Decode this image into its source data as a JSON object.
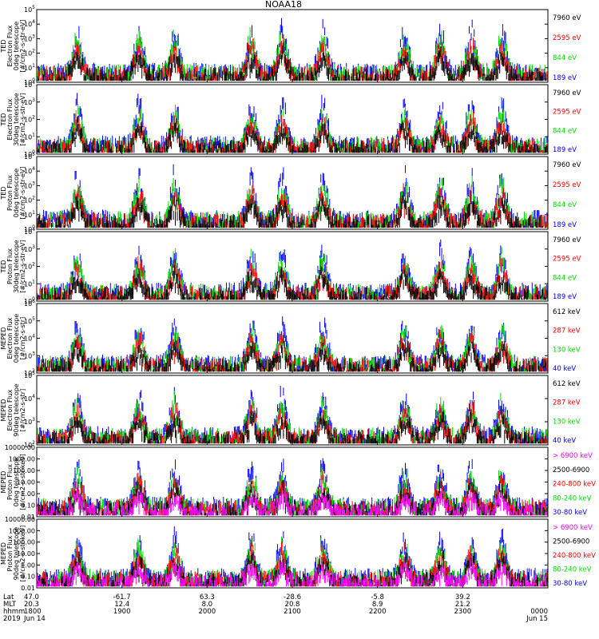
{
  "title": "NOAA18",
  "colors": {
    "black": "#000000",
    "red": "#ff0000",
    "green": "#00dd00",
    "blue": "#0000ff",
    "magenta": "#ff00ff"
  },
  "chart_data": [
    {
      "type": "line",
      "scale": "log",
      "ylabel": [
        "TED",
        "Electron Flux",
        "0deg telescope",
        "[#/cm2-s-str-eV]"
      ],
      "yticks": [
        "10^0",
        "10^1",
        "10^2",
        "10^3",
        "10^4",
        "10^5"
      ],
      "ylim": [
        1,
        100000
      ],
      "series": [
        {
          "name": "7960 eV",
          "color": "#000000"
        },
        {
          "name": "2595 eV",
          "color": "#ff0000"
        },
        {
          "name": "844 eV",
          "color": "#00dd00"
        },
        {
          "name": "189 eV",
          "color": "#0000ff"
        }
      ]
    },
    {
      "type": "line",
      "scale": "log",
      "ylabel": [
        "TED",
        "Electron Flux",
        "30deg telescope",
        "[#/cm2-s-str-eV]"
      ],
      "yticks": [
        "10^0",
        "10^1",
        "10^2",
        "10^3",
        "10^4"
      ],
      "ylim": [
        1,
        10000
      ],
      "series": [
        {
          "name": "7960 eV",
          "color": "#000000"
        },
        {
          "name": "2595 eV",
          "color": "#ff0000"
        },
        {
          "name": "844 eV",
          "color": "#00dd00"
        },
        {
          "name": "189 eV",
          "color": "#0000ff"
        }
      ]
    },
    {
      "type": "line",
      "scale": "log",
      "ylabel": [
        "TED",
        "Proton Flux",
        "0deg telescope",
        "[#/cm2-s-str-eV]"
      ],
      "yticks": [
        "10^0",
        "10^1",
        "10^2",
        "10^3",
        "10^4",
        "10^5"
      ],
      "ylim": [
        1,
        100000
      ],
      "series": [
        {
          "name": "7960 eV",
          "color": "#000000"
        },
        {
          "name": "2595 eV",
          "color": "#ff0000"
        },
        {
          "name": "844 eV",
          "color": "#00dd00"
        },
        {
          "name": "189 eV",
          "color": "#0000ff"
        }
      ]
    },
    {
      "type": "line",
      "scale": "log",
      "ylabel": [
        "TED",
        "Proton Flux",
        "30deg telescope",
        "[#/cm2-s-str-eV]"
      ],
      "yticks": [
        "10^0",
        "10^1",
        "10^2",
        "10^3",
        "10^4"
      ],
      "ylim": [
        1,
        10000
      ],
      "series": [
        {
          "name": "7960 eV",
          "color": "#000000"
        },
        {
          "name": "2595 eV",
          "color": "#ff0000"
        },
        {
          "name": "844 eV",
          "color": "#00dd00"
        },
        {
          "name": "189 eV",
          "color": "#0000ff"
        }
      ]
    },
    {
      "type": "line",
      "scale": "log",
      "ylabel": [
        "MEPED",
        "Electron Flux",
        "0deg telescope",
        "[#/cm2-s-str]"
      ],
      "yticks": [
        "10^2",
        "10^3",
        "10^4",
        "10^5",
        "10^6"
      ],
      "ylim": [
        100,
        1000000
      ],
      "series": [
        {
          "name": "612 keV",
          "color": "#000000"
        },
        {
          "name": "287 keV",
          "color": "#ff0000"
        },
        {
          "name": "130 keV",
          "color": "#00dd00"
        },
        {
          "name": "40 keV",
          "color": "#0000ff"
        }
      ]
    },
    {
      "type": "line",
      "scale": "log",
      "ylabel": [
        "MEPED",
        "Electron Flux",
        "90deg telescope",
        "[#/cm2-s-str]"
      ],
      "yticks": [
        "10^2",
        "10^3",
        "10^4",
        "10^5"
      ],
      "ylim": [
        100,
        100000
      ],
      "series": [
        {
          "name": "612 keV",
          "color": "#000000"
        },
        {
          "name": "287 keV",
          "color": "#ff0000"
        },
        {
          "name": "130 keV",
          "color": "#00dd00"
        },
        {
          "name": "40 keV",
          "color": "#0000ff"
        }
      ]
    },
    {
      "type": "line",
      "scale": "log",
      "ylabel": [
        "MEPED",
        "Proton Flux",
        "0deg telescope",
        "[#/cm2-s-str-keV]"
      ],
      "yticks": [
        "0.01",
        "0.10",
        "1.00",
        "10.00",
        "100.00",
        "1000.00",
        "10000.00"
      ],
      "ylim": [
        0.01,
        10000
      ],
      "series": [
        {
          "name": "> 6900 keV",
          "color": "#ff00ff"
        },
        {
          "name": "2500-6900",
          "color": "#000000"
        },
        {
          "name": "240-800 keV",
          "color": "#ff0000"
        },
        {
          "name": "80-240 keV",
          "color": "#00dd00"
        },
        {
          "name": "30-80 keV",
          "color": "#0000ff"
        }
      ]
    },
    {
      "type": "line",
      "scale": "log",
      "ylabel": [
        "MEPED",
        "Proton Flux",
        "90deg telescope",
        "[#/cm2-s-str-keV]"
      ],
      "yticks": [
        "0.01",
        "0.10",
        "1.00",
        "10.00",
        "100.00",
        "1000.00",
        "10000.00"
      ],
      "ylim": [
        0.01,
        10000
      ],
      "series": [
        {
          "name": "> 6900 keV",
          "color": "#ff00ff"
        },
        {
          "name": "2500-6900",
          "color": "#000000"
        },
        {
          "name": "240-800 keV",
          "color": "#ff0000"
        },
        {
          "name": "80-240 keV",
          "color": "#00dd00"
        },
        {
          "name": "30-80 keV",
          "color": "#0000ff"
        }
      ]
    }
  ],
  "xaxis": {
    "row_labels": [
      "Lat",
      "MLT",
      "hhmm",
      "2019"
    ],
    "ticks": [
      {
        "lat": "47.0",
        "mlt": "20.3",
        "hhmm": "1800",
        "date": "Jun 14"
      },
      {
        "lat": "-61.7",
        "mlt": "12.4",
        "hhmm": "1900",
        "date": ""
      },
      {
        "lat": "63.3",
        "mlt": "8.0",
        "hhmm": "2000",
        "date": ""
      },
      {
        "lat": "-28.6",
        "mlt": "20.8",
        "hhmm": "2100",
        "date": ""
      },
      {
        "lat": "-5.8",
        "mlt": "8.9",
        "hhmm": "2200",
        "date": ""
      },
      {
        "lat": "39.2",
        "mlt": "21.2",
        "hhmm": "2300",
        "date": ""
      },
      {
        "lat": "",
        "mlt": "",
        "hhmm": "0000",
        "date": "Jun 15"
      }
    ]
  }
}
